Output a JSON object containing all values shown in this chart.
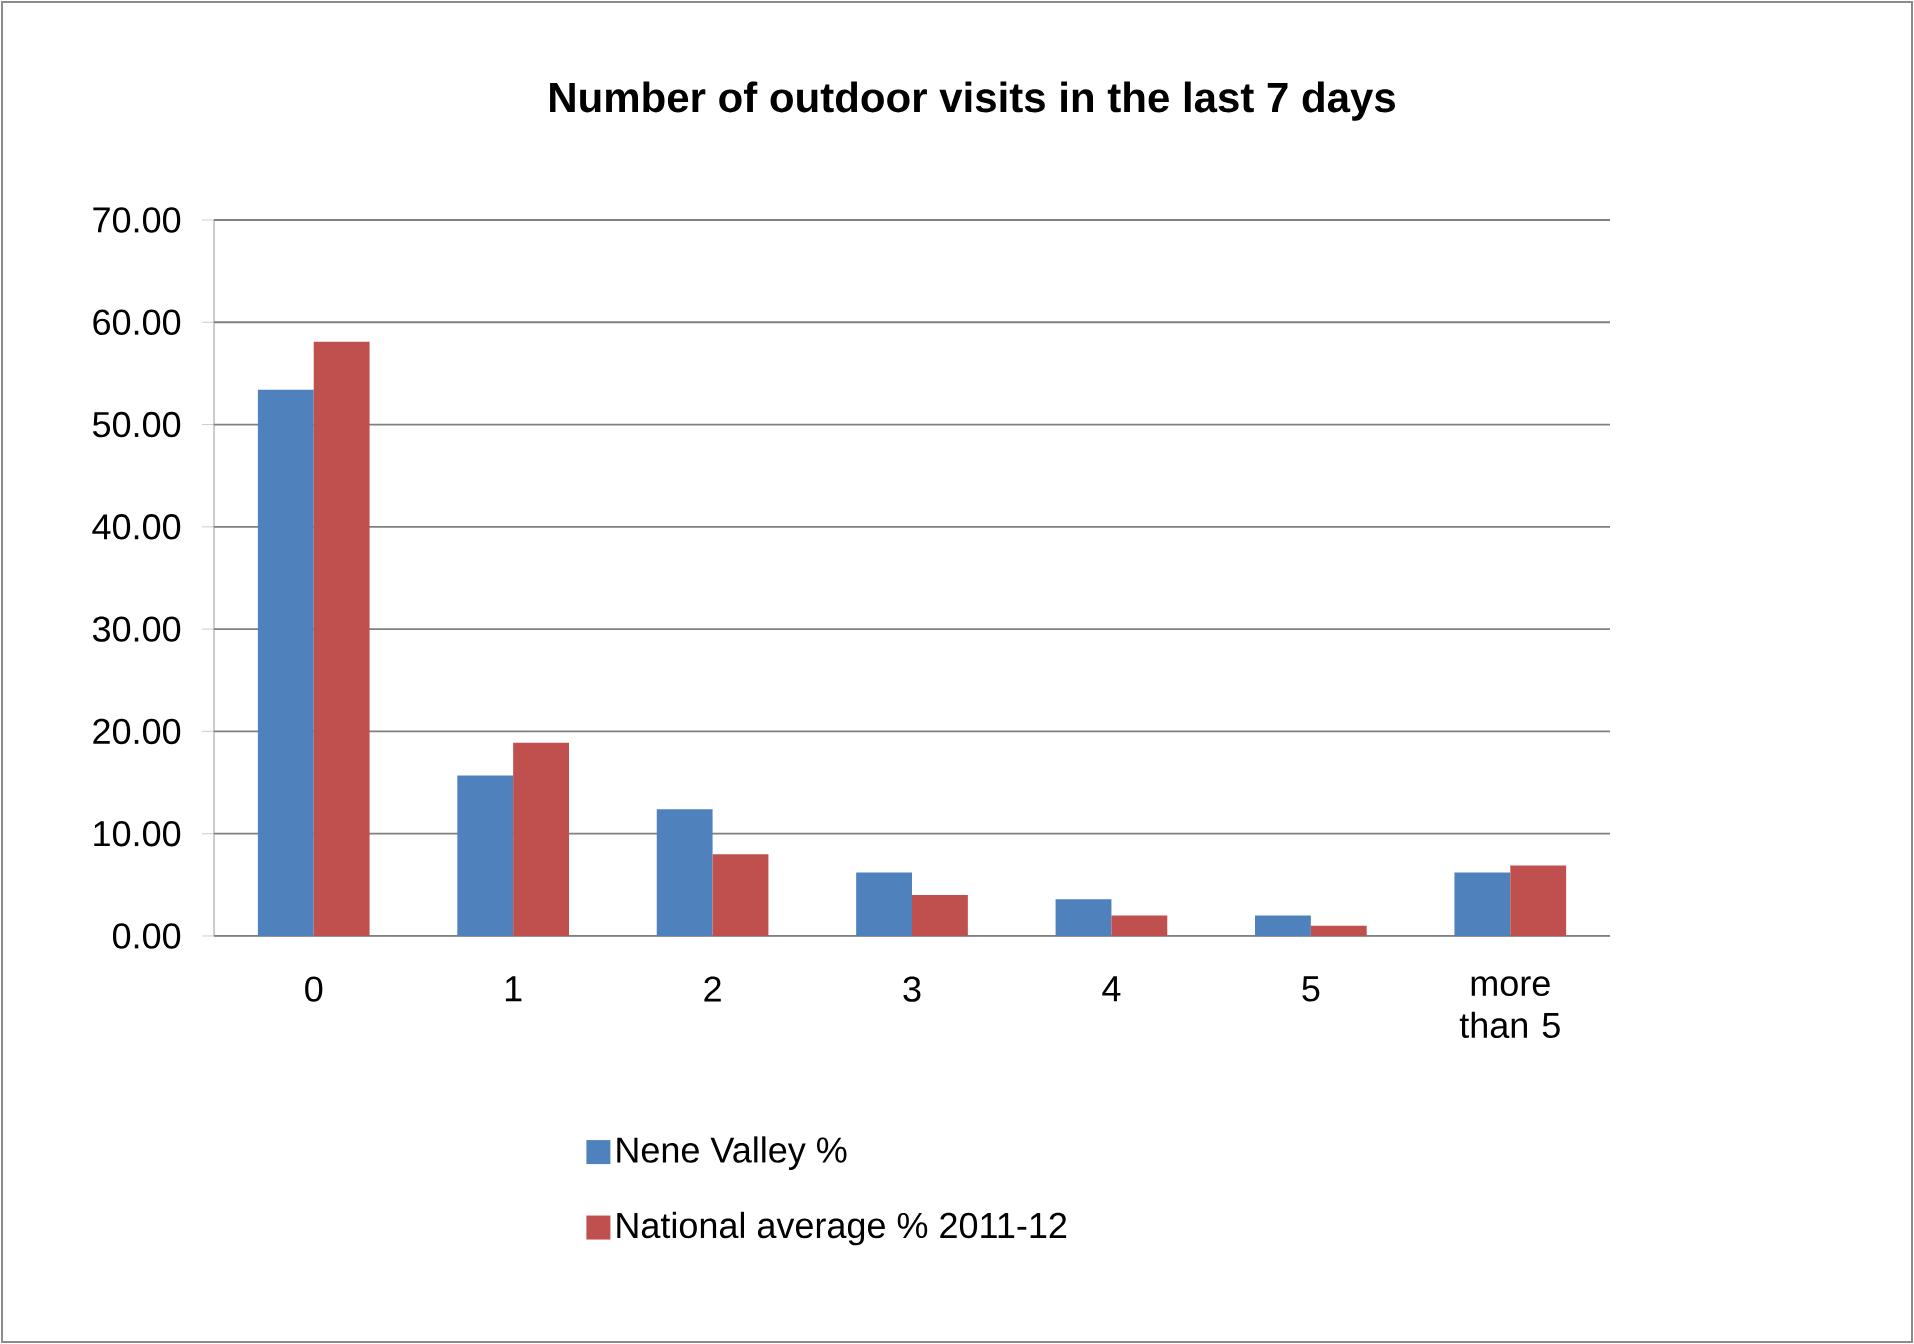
{
  "chart_data": {
    "type": "bar",
    "title": "Number of outdoor visits in the last 7 days",
    "categories": [
      "0",
      "1",
      "2",
      "3",
      "4",
      "5",
      "more than 5"
    ],
    "series": [
      {
        "name": "Nene Valley %",
        "color": "#4f81bd",
        "values": [
          53.4,
          15.7,
          12.4,
          6.2,
          3.6,
          2.0,
          6.2
        ]
      },
      {
        "name": "National average % 2011-12",
        "color": "#c0504d",
        "values": [
          58.1,
          18.9,
          8.0,
          4.0,
          2.0,
          1.0,
          6.9
        ]
      }
    ],
    "ylim": [
      0,
      70
    ],
    "yticks": [
      {
        "value": 0,
        "label": "0.00"
      },
      {
        "value": 10,
        "label": "10.00"
      },
      {
        "value": 20,
        "label": "20.00"
      },
      {
        "value": 30,
        "label": "30.00"
      },
      {
        "value": 40,
        "label": "40.00"
      },
      {
        "value": 50,
        "label": "50.00"
      },
      {
        "value": 60,
        "label": "60.00"
      },
      {
        "value": 70,
        "label": "70.00"
      }
    ],
    "grid": "y",
    "legend": "bottom"
  }
}
